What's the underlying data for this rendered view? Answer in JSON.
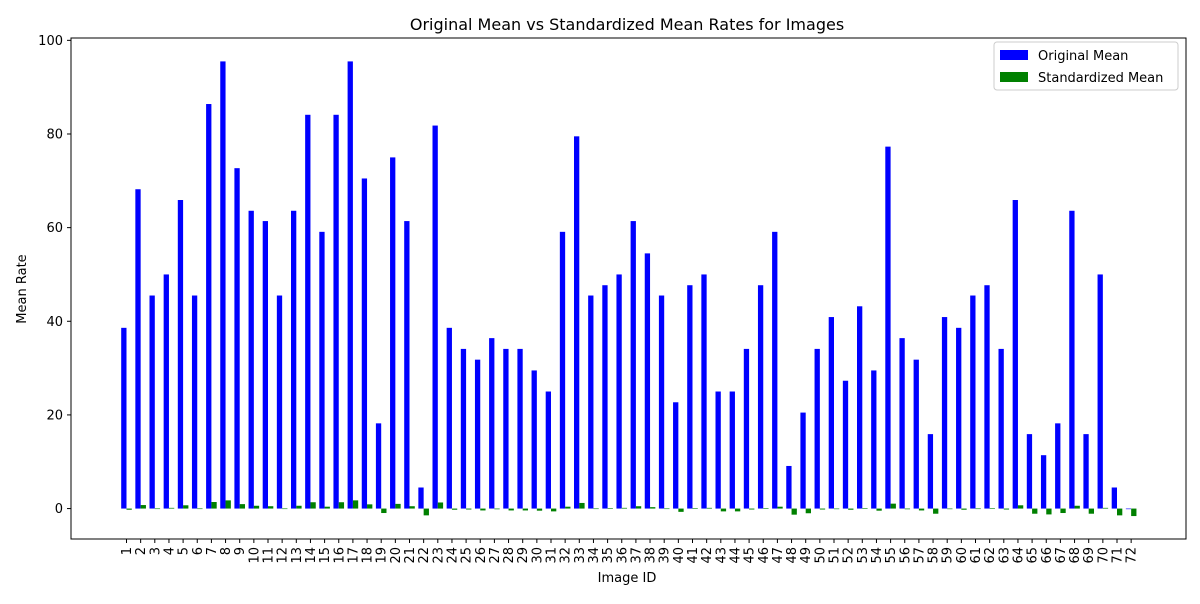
{
  "chart_data": {
    "type": "bar",
    "title": "Original Mean vs Standardized Mean Rates for Images",
    "xlabel": "Image ID",
    "ylabel": "Mean Rate",
    "ylim": [
      -6.5,
      100.5
    ],
    "yticks": [
      0,
      20,
      40,
      60,
      80,
      100
    ],
    "grid": false,
    "legend_position": "top-right",
    "categories": [
      "1",
      "2",
      "3",
      "4",
      "5",
      "6",
      "7",
      "8",
      "9",
      "10",
      "11",
      "12",
      "13",
      "14",
      "15",
      "16",
      "17",
      "18",
      "19",
      "20",
      "21",
      "22",
      "23",
      "24",
      "25",
      "26",
      "27",
      "28",
      "29",
      "30",
      "31",
      "32",
      "33",
      "34",
      "35",
      "36",
      "37",
      "38",
      "39",
      "40",
      "41",
      "42",
      "43",
      "44",
      "45",
      "46",
      "47",
      "48",
      "49",
      "50",
      "51",
      "52",
      "53",
      "54",
      "55",
      "56",
      "57",
      "58",
      "59",
      "60",
      "61",
      "62",
      "63",
      "64",
      "65",
      "66",
      "67",
      "68",
      "69",
      "70",
      "71",
      "72"
    ],
    "series": [
      {
        "name": "Original Mean",
        "color": "#0000ff",
        "values": [
          38.6,
          68.2,
          45.5,
          50.0,
          65.9,
          45.5,
          86.4,
          95.5,
          72.7,
          63.6,
          61.4,
          45.5,
          63.6,
          84.1,
          59.1,
          84.1,
          95.5,
          70.5,
          18.2,
          75.0,
          61.4,
          4.5,
          81.8,
          38.6,
          34.1,
          31.8,
          36.4,
          34.1,
          34.1,
          29.5,
          25.0,
          59.1,
          79.5,
          45.5,
          47.7,
          50.0,
          61.4,
          54.5,
          45.5,
          22.7,
          47.7,
          50.0,
          25.0,
          25.0,
          34.1,
          47.7,
          59.1,
          9.1,
          20.5,
          34.1,
          40.9,
          27.3,
          43.2,
          29.5,
          77.3,
          36.4,
          31.8,
          15.9,
          40.9,
          38.6,
          45.5,
          47.7,
          34.1,
          65.9,
          15.9,
          11.4,
          18.2,
          63.6,
          15.9,
          50.0,
          4.5,
          0.0
        ]
      },
      {
        "name": "Standardized Mean",
        "color": "#008000",
        "values": [
          -0.25,
          0.75,
          0.02,
          0.15,
          0.7,
          0.02,
          1.4,
          1.75,
          0.95,
          0.6,
          0.5,
          0.02,
          0.6,
          1.35,
          0.4,
          1.35,
          1.75,
          0.9,
          -0.95,
          1.0,
          0.5,
          -1.45,
          1.3,
          -0.25,
          -0.2,
          -0.4,
          -0.15,
          -0.4,
          -0.4,
          -0.45,
          -0.6,
          0.4,
          1.2,
          0.02,
          0.1,
          0.15,
          0.5,
          0.3,
          0.02,
          -0.7,
          0.1,
          0.15,
          -0.6,
          -0.6,
          -0.2,
          0.1,
          0.4,
          -1.3,
          -1.0,
          -0.2,
          0.0,
          -0.25,
          0.05,
          -0.45,
          1.05,
          -0.15,
          -0.4,
          -1.1,
          0.0,
          -0.25,
          0.02,
          0.1,
          -0.2,
          0.7,
          -1.1,
          -1.25,
          -0.95,
          0.6,
          -1.1,
          0.15,
          -1.45,
          -1.6
        ]
      }
    ]
  }
}
